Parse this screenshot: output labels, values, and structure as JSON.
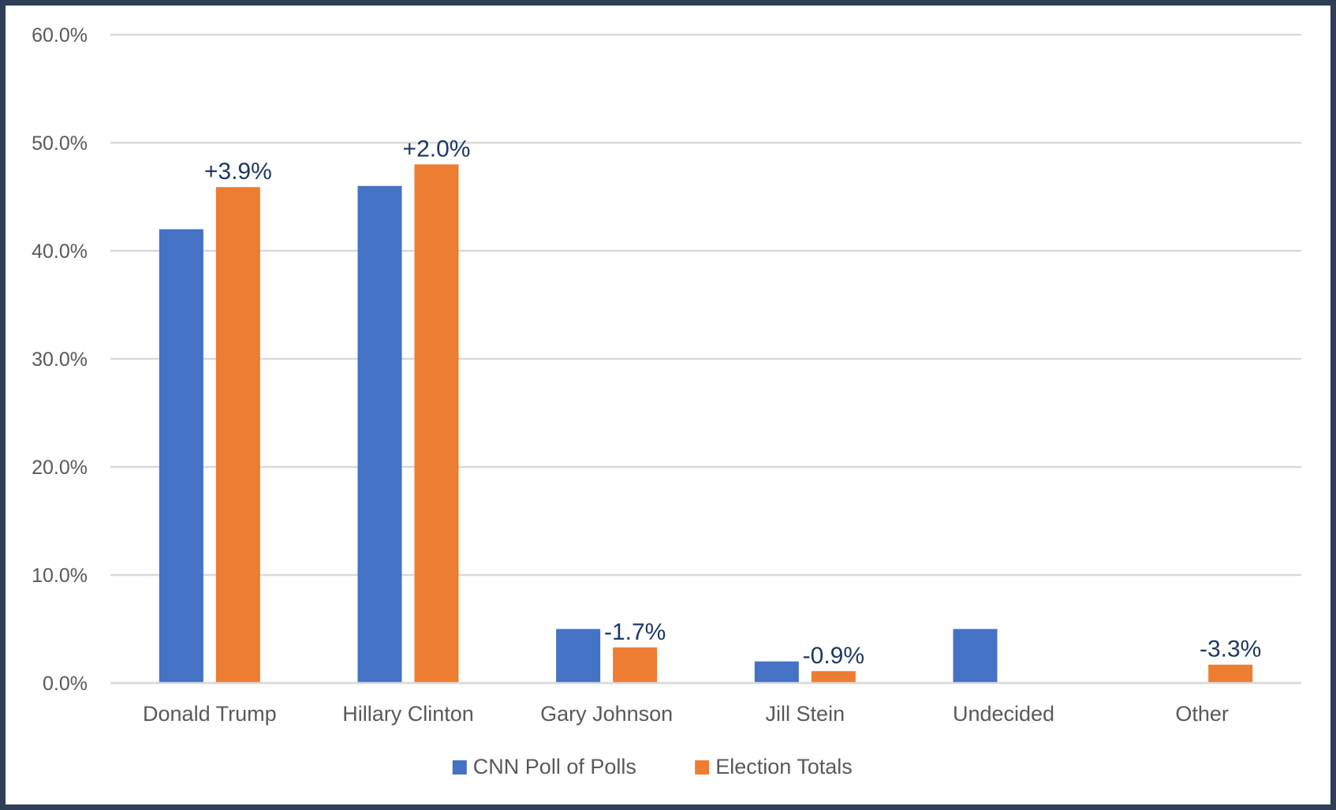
{
  "chart_data": {
    "type": "bar",
    "categories": [
      "Donald Trump",
      "Hillary Clinton",
      "Gary Johnson",
      "Jill Stein",
      "Undecided",
      "Other"
    ],
    "series": [
      {
        "name": "CNN Poll of Polls",
        "color": "#4472c4",
        "values": [
          42.0,
          46.0,
          5.0,
          2.0,
          5.0,
          null
        ]
      },
      {
        "name": "Election Totals",
        "color": "#ed7d31",
        "values": [
          45.9,
          48.0,
          3.3,
          1.1,
          null,
          1.7
        ]
      }
    ],
    "data_labels": [
      "+3.9%",
      "+2.0%",
      "-1.7%",
      "-0.9%",
      "",
      "-3.3%"
    ],
    "y_ticks": [
      "0.0%",
      "10.0%",
      "20.0%",
      "30.0%",
      "40.0%",
      "50.0%",
      "60.0%"
    ],
    "ylim": [
      0,
      60
    ],
    "grid": true,
    "legend_position": "bottom",
    "title": "",
    "xlabel": "",
    "ylabel": ""
  }
}
